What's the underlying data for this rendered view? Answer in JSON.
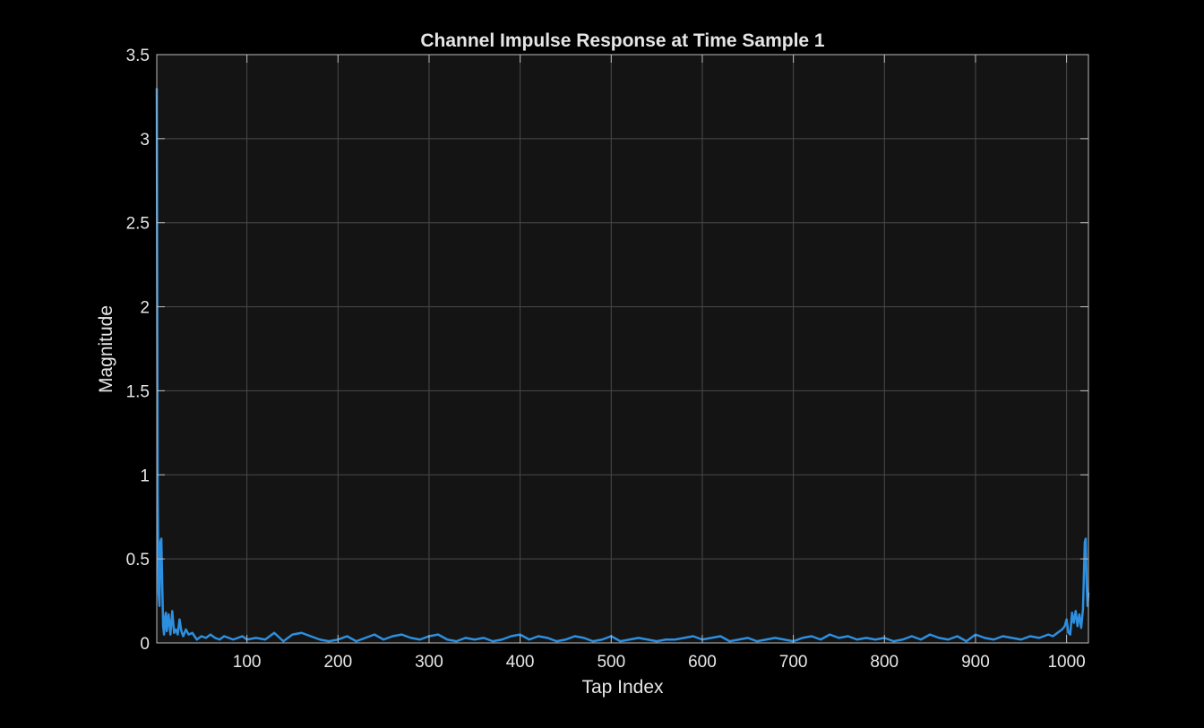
{
  "chart_data": {
    "type": "line",
    "title": "Channel Impulse Response at Time Sample 1",
    "xlabel": "Tap Index",
    "ylabel": "Magnitude",
    "xlim": [
      1,
      1024
    ],
    "ylim": [
      0,
      3.5
    ],
    "xticks": [
      100,
      200,
      300,
      400,
      500,
      600,
      700,
      800,
      900,
      1000
    ],
    "yticks": [
      0,
      0.5,
      1,
      1.5,
      2,
      2.5,
      3,
      3.5
    ],
    "ytick_labels": [
      "0",
      "0.5",
      "1",
      "1.5",
      "2",
      "2.5",
      "3",
      "3.5"
    ],
    "grid": true,
    "colors": {
      "background": "#000000",
      "axes_bg": "#141414",
      "grid": "#4a4a4a",
      "axis": "#bdbdbd",
      "text": "#e6e6e6",
      "line": "#2d8fe0"
    },
    "series": [
      {
        "x": [
          1,
          2,
          3,
          4,
          5,
          6,
          7,
          8,
          9,
          10,
          11,
          12,
          14,
          16,
          18,
          20,
          22,
          24,
          26,
          28,
          30,
          33,
          36,
          40,
          45,
          50,
          55,
          60,
          65,
          70,
          75,
          80,
          85,
          90,
          95,
          100,
          110,
          120,
          130,
          140,
          150,
          160,
          170,
          180,
          190,
          200,
          210,
          220,
          230,
          240,
          250,
          260,
          270,
          280,
          290,
          300,
          310,
          320,
          330,
          340,
          350,
          360,
          370,
          380,
          390,
          400,
          410,
          420,
          430,
          440,
          450,
          460,
          470,
          480,
          490,
          500,
          510,
          520,
          530,
          540,
          550,
          560,
          570,
          580,
          590,
          600,
          610,
          620,
          630,
          640,
          650,
          660,
          670,
          680,
          690,
          700,
          710,
          720,
          730,
          740,
          750,
          760,
          770,
          780,
          790,
          800,
          810,
          820,
          830,
          840,
          850,
          860,
          870,
          880,
          890,
          900,
          910,
          920,
          930,
          940,
          950,
          960,
          970,
          980,
          985,
          990,
          995,
          998,
          1000,
          1002,
          1004,
          1006,
          1008,
          1010,
          1012,
          1014,
          1016,
          1018,
          1019,
          1020,
          1021,
          1022,
          1023,
          1024
        ],
        "values": [
          3.3,
          0.9,
          0.3,
          0.22,
          0.6,
          0.62,
          0.35,
          0.1,
          0.05,
          0.15,
          0.18,
          0.07,
          0.17,
          0.05,
          0.19,
          0.06,
          0.08,
          0.05,
          0.14,
          0.07,
          0.04,
          0.08,
          0.05,
          0.06,
          0.02,
          0.04,
          0.03,
          0.05,
          0.03,
          0.02,
          0.04,
          0.03,
          0.02,
          0.03,
          0.04,
          0.02,
          0.03,
          0.02,
          0.06,
          0.01,
          0.05,
          0.06,
          0.04,
          0.02,
          0.01,
          0.02,
          0.04,
          0.01,
          0.03,
          0.05,
          0.02,
          0.04,
          0.05,
          0.03,
          0.02,
          0.04,
          0.05,
          0.02,
          0.01,
          0.03,
          0.02,
          0.03,
          0.01,
          0.02,
          0.04,
          0.05,
          0.02,
          0.04,
          0.03,
          0.01,
          0.02,
          0.04,
          0.03,
          0.01,
          0.02,
          0.04,
          0.01,
          0.02,
          0.03,
          0.02,
          0.01,
          0.02,
          0.02,
          0.03,
          0.04,
          0.02,
          0.03,
          0.04,
          0.01,
          0.02,
          0.03,
          0.01,
          0.02,
          0.03,
          0.02,
          0.01,
          0.03,
          0.04,
          0.02,
          0.05,
          0.03,
          0.04,
          0.02,
          0.03,
          0.02,
          0.03,
          0.01,
          0.02,
          0.04,
          0.02,
          0.05,
          0.03,
          0.02,
          0.04,
          0.01,
          0.05,
          0.03,
          0.02,
          0.04,
          0.03,
          0.02,
          0.04,
          0.03,
          0.05,
          0.04,
          0.06,
          0.08,
          0.1,
          0.14,
          0.06,
          0.05,
          0.18,
          0.12,
          0.19,
          0.1,
          0.17,
          0.09,
          0.2,
          0.4,
          0.6,
          0.62,
          0.35,
          0.22,
          0.3
        ]
      }
    ]
  }
}
